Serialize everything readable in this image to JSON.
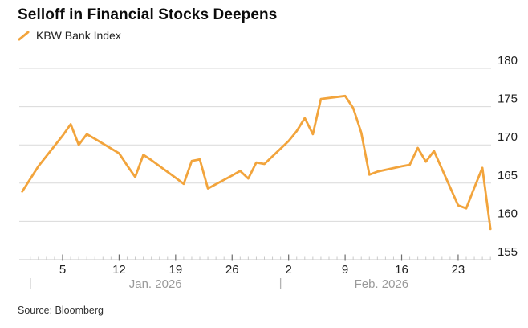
{
  "header": {
    "title": "Selloff in Financial Stocks Deepens"
  },
  "legend": {
    "label": "KBW Bank Index",
    "marker_icon": "diagonal-line-marker"
  },
  "footer": {
    "source": "Source: Bloomberg"
  },
  "colors": {
    "line": "#F2A43C",
    "grid": "#D9D9D9",
    "axis_line": "#C9C9C9",
    "tick_minor": "#C9C9C9",
    "tick_major": "#6E6E6E",
    "axis_text": "#1F1F1F",
    "month_text": "#9A9A9A",
    "month_separator": "#B3B3B3"
  },
  "chart_data": {
    "type": "line",
    "title": "Selloff in Financial Stocks Deepens",
    "series_name": "KBW Bank Index",
    "xlabel": "",
    "ylabel": "",
    "ylim": [
      155,
      180
    ],
    "y_ticks": [
      155,
      160,
      165,
      170,
      175,
      180
    ],
    "grid": "horizontal",
    "legend_position": "top-left",
    "y_axis_side": "right",
    "x_axis": {
      "minor_tick_day_range": [
        1,
        58
      ],
      "major_ticks": [
        {
          "label": "5",
          "day": 5
        },
        {
          "label": "12",
          "day": 12
        },
        {
          "label": "19",
          "day": 19
        },
        {
          "label": "26",
          "day": 26
        },
        {
          "label": "2",
          "day": 33
        },
        {
          "label": "9",
          "day": 40
        },
        {
          "label": "16",
          "day": 47
        },
        {
          "label": "23",
          "day": 54
        }
      ],
      "month_separator_days": [
        1,
        32
      ],
      "month_labels": [
        {
          "label": "Jan. 2026",
          "center_day": 16.5
        },
        {
          "label": "Feb. 2026",
          "center_day": 44.5
        }
      ]
    },
    "points": [
      {
        "date": "Dec 31",
        "day": 0,
        "value": 163.9
      },
      {
        "date": "Jan 2",
        "day": 2,
        "value": 167.2
      },
      {
        "date": "Jan 5",
        "day": 5,
        "value": 171.2
      },
      {
        "date": "Jan 6",
        "day": 6,
        "value": 172.7
      },
      {
        "date": "Jan 7",
        "day": 7,
        "value": 170.0
      },
      {
        "date": "Jan 8",
        "day": 8,
        "value": 171.4
      },
      {
        "date": "Jan 9",
        "day": 9,
        "value": 170.8
      },
      {
        "date": "Jan 12",
        "day": 12,
        "value": 168.9
      },
      {
        "date": "Jan 13",
        "day": 13,
        "value": 167.3
      },
      {
        "date": "Jan 14",
        "day": 14,
        "value": 165.8
      },
      {
        "date": "Jan 15",
        "day": 15,
        "value": 168.7
      },
      {
        "date": "Jan 16",
        "day": 16,
        "value": 168.0
      },
      {
        "date": "Jan 19",
        "day": 19,
        "value": 165.7
      },
      {
        "date": "Jan 20",
        "day": 20,
        "value": 164.9
      },
      {
        "date": "Jan 21",
        "day": 21,
        "value": 167.9
      },
      {
        "date": "Jan 22",
        "day": 22,
        "value": 168.1
      },
      {
        "date": "Jan 23",
        "day": 23,
        "value": 164.3
      },
      {
        "date": "Jan 26",
        "day": 26,
        "value": 166.0
      },
      {
        "date": "Jan 27",
        "day": 27,
        "value": 166.6
      },
      {
        "date": "Jan 28",
        "day": 28,
        "value": 165.6
      },
      {
        "date": "Jan 29",
        "day": 29,
        "value": 167.7
      },
      {
        "date": "Jan 30",
        "day": 30,
        "value": 167.5
      },
      {
        "date": "Feb 2",
        "day": 33,
        "value": 170.5
      },
      {
        "date": "Feb 3",
        "day": 34,
        "value": 171.8
      },
      {
        "date": "Feb 4",
        "day": 35,
        "value": 173.5
      },
      {
        "date": "Feb 5",
        "day": 36,
        "value": 171.4
      },
      {
        "date": "Feb 6",
        "day": 37,
        "value": 176.0
      },
      {
        "date": "Feb 9",
        "day": 40,
        "value": 176.4
      },
      {
        "date": "Feb 10",
        "day": 41,
        "value": 174.8
      },
      {
        "date": "Feb 11",
        "day": 42,
        "value": 171.6
      },
      {
        "date": "Feb 12",
        "day": 43,
        "value": 166.1
      },
      {
        "date": "Feb 13",
        "day": 44,
        "value": 166.5
      },
      {
        "date": "Feb 16",
        "day": 47,
        "value": 167.2
      },
      {
        "date": "Feb 17",
        "day": 48,
        "value": 167.4
      },
      {
        "date": "Feb 18",
        "day": 49,
        "value": 169.6
      },
      {
        "date": "Feb 19",
        "day": 50,
        "value": 167.8
      },
      {
        "date": "Feb 20",
        "day": 51,
        "value": 169.2
      },
      {
        "date": "Feb 23",
        "day": 54,
        "value": 162.1
      },
      {
        "date": "Feb 24",
        "day": 55,
        "value": 161.7
      },
      {
        "date": "Feb 25",
        "day": 56,
        "value": 164.4
      },
      {
        "date": "Feb 26",
        "day": 57,
        "value": 167.0
      },
      {
        "date": "Feb 27",
        "day": 58,
        "value": 159.0
      }
    ]
  }
}
